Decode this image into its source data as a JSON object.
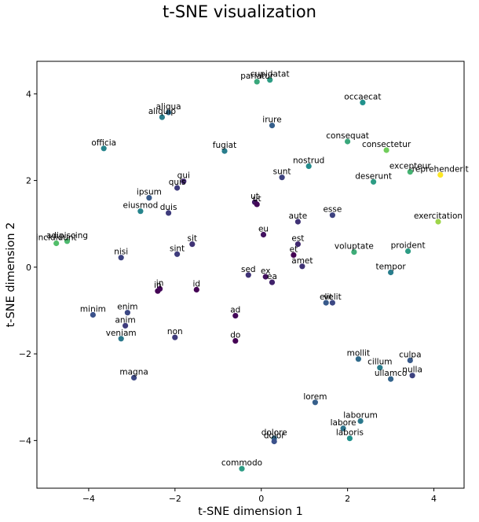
{
  "chart_data": {
    "type": "scatter",
    "title": "t-SNE visualization",
    "xlabel": "t-SNE dimension 1",
    "ylabel": "t-SNE dimension 2",
    "xlim": [
      -5.2,
      4.7
    ],
    "ylim": [
      -5.1,
      4.75
    ],
    "xticks": [
      -4,
      -2,
      0,
      2,
      4
    ],
    "yticks": [
      -4,
      -2,
      0,
      2,
      4
    ],
    "grid": false,
    "legend": "none",
    "colormap": "viridis",
    "points": [
      {
        "label": "pariatur",
        "x": -0.1,
        "y": 4.28,
        "c": 0.6
      },
      {
        "label": "cupidatat",
        "x": 0.2,
        "y": 4.32,
        "c": 0.55
      },
      {
        "label": "occaecat",
        "x": 2.35,
        "y": 3.8,
        "c": 0.5
      },
      {
        "label": "aliqua",
        "x": -2.15,
        "y": 3.57,
        "c": 0.35
      },
      {
        "label": "aliquip",
        "x": -2.3,
        "y": 3.46,
        "c": 0.42
      },
      {
        "label": "irure",
        "x": 0.25,
        "y": 3.27,
        "c": 0.3
      },
      {
        "label": "officia",
        "x": -3.65,
        "y": 2.74,
        "c": 0.45
      },
      {
        "label": "fugiat",
        "x": -0.85,
        "y": 2.68,
        "c": 0.42
      },
      {
        "label": "consequat",
        "x": 2.0,
        "y": 2.9,
        "c": 0.6
      },
      {
        "label": "consectetur",
        "x": 2.9,
        "y": 2.7,
        "c": 0.78
      },
      {
        "label": "nostrud",
        "x": 1.1,
        "y": 2.33,
        "c": 0.48
      },
      {
        "label": "excepteur",
        "x": 3.45,
        "y": 2.2,
        "c": 0.65
      },
      {
        "label": "reprehenderit",
        "x": 4.15,
        "y": 2.13,
        "c": 1.0
      },
      {
        "label": "sunt",
        "x": 0.48,
        "y": 2.07,
        "c": 0.2
      },
      {
        "label": "deserunt",
        "x": 2.6,
        "y": 1.97,
        "c": 0.55
      },
      {
        "label": "qui",
        "x": -1.8,
        "y": 1.98,
        "c": 0.12
      },
      {
        "label": "quis",
        "x": -1.95,
        "y": 1.83,
        "c": 0.18
      },
      {
        "label": "ipsum",
        "x": -2.6,
        "y": 1.6,
        "c": 0.28
      },
      {
        "label": "ut",
        "x": -0.15,
        "y": 1.5,
        "c": 0.08
      },
      {
        "label": "ut",
        "x": -0.1,
        "y": 1.45,
        "c": 0.02
      },
      {
        "label": "eiusmod",
        "x": -2.8,
        "y": 1.29,
        "c": 0.45
      },
      {
        "label": "duis",
        "x": -2.15,
        "y": 1.25,
        "c": 0.18
      },
      {
        "label": "esse",
        "x": 1.65,
        "y": 1.2,
        "c": 0.2
      },
      {
        "label": "aute",
        "x": 0.85,
        "y": 1.05,
        "c": 0.15
      },
      {
        "label": "exercitation",
        "x": 4.1,
        "y": 1.05,
        "c": 0.85
      },
      {
        "label": "incididunt",
        "x": -4.75,
        "y": 0.55,
        "c": 0.7
      },
      {
        "label": "adipiscing",
        "x": -4.5,
        "y": 0.6,
        "c": 0.68
      },
      {
        "label": "eu",
        "x": 0.05,
        "y": 0.75,
        "c": 0.05
      },
      {
        "label": "sit",
        "x": -1.6,
        "y": 0.53,
        "c": 0.15
      },
      {
        "label": "est",
        "x": 0.85,
        "y": 0.53,
        "c": 0.12
      },
      {
        "label": "voluptate",
        "x": 2.15,
        "y": 0.35,
        "c": 0.62
      },
      {
        "label": "proident",
        "x": 3.4,
        "y": 0.37,
        "c": 0.55
      },
      {
        "label": "sint",
        "x": -1.95,
        "y": 0.3,
        "c": 0.18
      },
      {
        "label": "et",
        "x": 0.75,
        "y": 0.28,
        "c": 0.0
      },
      {
        "label": "nisi",
        "x": -3.25,
        "y": 0.22,
        "c": 0.2
      },
      {
        "label": "amet",
        "x": 0.95,
        "y": 0.02,
        "c": 0.15
      },
      {
        "label": "tempor",
        "x": 3.0,
        "y": -0.12,
        "c": 0.42
      },
      {
        "label": "sed",
        "x": -0.3,
        "y": -0.18,
        "c": 0.15
      },
      {
        "label": "ex",
        "x": 0.1,
        "y": -0.22,
        "c": 0.05
      },
      {
        "label": "ea",
        "x": 0.25,
        "y": -0.35,
        "c": 0.1
      },
      {
        "label": "in",
        "x": -2.4,
        "y": -0.55,
        "c": 0.0
      },
      {
        "label": "in",
        "x": -2.35,
        "y": -0.5,
        "c": 0.02
      },
      {
        "label": "id",
        "x": -1.5,
        "y": -0.52,
        "c": 0.0
      },
      {
        "label": "elit",
        "x": 1.5,
        "y": -0.82,
        "c": 0.28
      },
      {
        "label": "velit",
        "x": 1.65,
        "y": -0.82,
        "c": 0.22
      },
      {
        "label": "minim",
        "x": -3.9,
        "y": -1.1,
        "c": 0.25
      },
      {
        "label": "enim",
        "x": -3.1,
        "y": -1.05,
        "c": 0.22
      },
      {
        "label": "ad",
        "x": -0.6,
        "y": -1.12,
        "c": 0.02
      },
      {
        "label": "anim",
        "x": -3.15,
        "y": -1.35,
        "c": 0.18
      },
      {
        "label": "veniam",
        "x": -3.25,
        "y": -1.65,
        "c": 0.4
      },
      {
        "label": "non",
        "x": -2.0,
        "y": -1.62,
        "c": 0.18
      },
      {
        "label": "do",
        "x": -0.6,
        "y": -1.7,
        "c": 0.0
      },
      {
        "label": "mollit",
        "x": 2.25,
        "y": -2.12,
        "c": 0.35
      },
      {
        "label": "culpa",
        "x": 3.45,
        "y": -2.15,
        "c": 0.28
      },
      {
        "label": "cillum",
        "x": 2.75,
        "y": -2.32,
        "c": 0.42
      },
      {
        "label": "nulla",
        "x": 3.5,
        "y": -2.5,
        "c": 0.2
      },
      {
        "label": "ullamco",
        "x": 3.0,
        "y": -2.58,
        "c": 0.32
      },
      {
        "label": "magna",
        "x": -2.95,
        "y": -2.55,
        "c": 0.22
      },
      {
        "label": "lorem",
        "x": 1.25,
        "y": -3.12,
        "c": 0.3
      },
      {
        "label": "laborum",
        "x": 2.3,
        "y": -3.55,
        "c": 0.4
      },
      {
        "label": "labore",
        "x": 1.9,
        "y": -3.72,
        "c": 0.38
      },
      {
        "label": "laboris",
        "x": 2.05,
        "y": -3.95,
        "c": 0.5
      },
      {
        "label": "dolore",
        "x": 0.3,
        "y": -3.95,
        "c": 0.35
      },
      {
        "label": "dolor",
        "x": 0.3,
        "y": -4.02,
        "c": 0.25
      },
      {
        "label": "commodo",
        "x": -0.45,
        "y": -4.65,
        "c": 0.55
      }
    ]
  }
}
